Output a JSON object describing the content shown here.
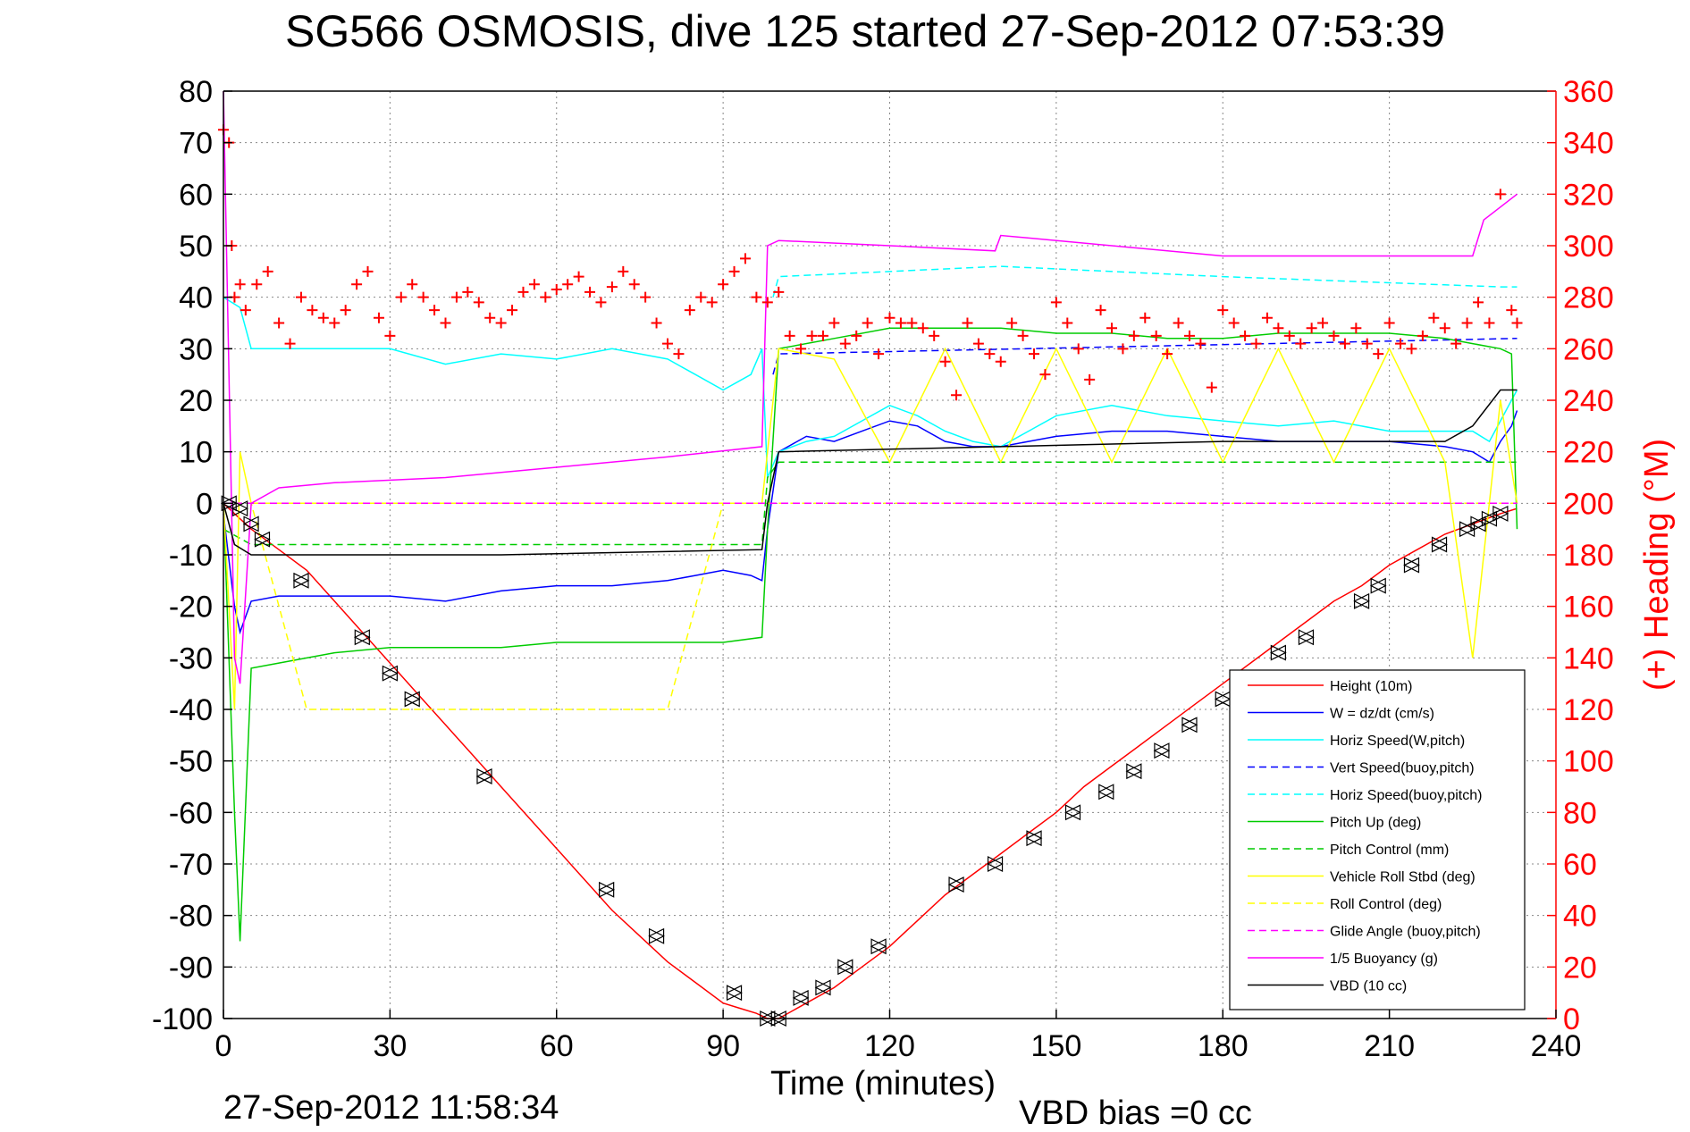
{
  "chart_data": {
    "type": "line",
    "title": "SG566 OSMOSIS, dive 125 started 27-Sep-2012 07:53:39",
    "xlabel": "Time (minutes)",
    "ylabel_right": "(+) Heading (°M)",
    "xlim": [
      0,
      240
    ],
    "ylim": [
      -100,
      80
    ],
    "ylim_right": [
      0,
      360
    ],
    "x_ticks": [
      "0",
      "30",
      "60",
      "90",
      "120",
      "150",
      "180",
      "210",
      "240"
    ],
    "y_ticks": [
      "80",
      "70",
      "60",
      "50",
      "40",
      "30",
      "20",
      "10",
      "0",
      "-10",
      "-20",
      "-30",
      "-40",
      "-50",
      "-60",
      "-70",
      "-80",
      "-90",
      "-100"
    ],
    "y_ticks_right": [
      "360",
      "340",
      "320",
      "300",
      "280",
      "260",
      "240",
      "220",
      "200",
      "180",
      "160",
      "140",
      "120",
      "100",
      "80",
      "60",
      "40",
      "20",
      "0"
    ],
    "grid": true,
    "legend_position": "bottom-right",
    "footer_left": "27-Sep-2012 11:58:34",
    "footer_right": "VBD bias =0 cc",
    "series": [
      {
        "name": "Height (10m)",
        "color": "#ff0000",
        "style": "solid",
        "x": [
          0,
          2,
          5,
          10,
          15,
          20,
          25,
          30,
          35,
          40,
          45,
          50,
          55,
          60,
          65,
          70,
          75,
          80,
          85,
          90,
          93,
          96,
          98,
          100,
          105,
          110,
          115,
          120,
          125,
          130,
          135,
          140,
          145,
          150,
          155,
          160,
          165,
          170,
          175,
          180,
          185,
          190,
          195,
          200,
          205,
          210,
          215,
          220,
          225,
          230,
          233
        ],
        "y": [
          0,
          -2,
          -5,
          -9,
          -13,
          -19,
          -25,
          -31,
          -37,
          -43,
          -49,
          -55,
          -61,
          -67,
          -73,
          -79,
          -84,
          -89,
          -93,
          -97,
          -98,
          -99,
          -100,
          -100,
          -97,
          -94,
          -90,
          -86,
          -81,
          -76,
          -72,
          -68,
          -64,
          -60,
          -55,
          -51,
          -47,
          -43,
          -39,
          -35,
          -31,
          -27,
          -23,
          -19,
          -16,
          -12,
          -9,
          -6,
          -4,
          -2,
          -1
        ]
      },
      {
        "name": "W = dz/dt (cm/s)",
        "color": "#0000ff",
        "style": "solid",
        "x": [
          0,
          2,
          3,
          5,
          10,
          20,
          30,
          40,
          50,
          60,
          70,
          80,
          85,
          90,
          95,
          97,
          98,
          100,
          105,
          110,
          115,
          120,
          125,
          130,
          135,
          140,
          145,
          150,
          160,
          170,
          180,
          190,
          200,
          210,
          220,
          225,
          228,
          230,
          232,
          233
        ],
        "y": [
          -2,
          -20,
          -25,
          -19,
          -18,
          -18,
          -18,
          -19,
          -17,
          -16,
          -16,
          -15,
          -14,
          -13,
          -14,
          -15,
          -5,
          10,
          13,
          12,
          14,
          16,
          15,
          12,
          11,
          11,
          12,
          13,
          14,
          14,
          13,
          12,
          12,
          12,
          11,
          10,
          8,
          12,
          15,
          18
        ]
      },
      {
        "name": "Horiz Speed(W,pitch)",
        "color": "#00ffff",
        "style": "solid",
        "x": [
          0,
          3,
          5,
          10,
          20,
          30,
          40,
          50,
          60,
          70,
          80,
          85,
          90,
          95,
          97,
          98,
          100,
          105,
          110,
          115,
          120,
          125,
          130,
          135,
          140,
          145,
          150,
          160,
          170,
          180,
          190,
          200,
          210,
          220,
          225,
          228,
          230,
          232,
          233
        ],
        "y": [
          40,
          38,
          30,
          30,
          30,
          30,
          27,
          29,
          28,
          30,
          28,
          25,
          22,
          25,
          30,
          5,
          10,
          12,
          13,
          16,
          19,
          17,
          14,
          12,
          11,
          14,
          17,
          19,
          17,
          16,
          15,
          16,
          14,
          14,
          14,
          12,
          16,
          20,
          22
        ]
      },
      {
        "name": "Vert Speed(buoy,pitch)",
        "color": "#0000ff",
        "style": "dashed",
        "x": [
          99,
          100,
          233
        ],
        "y": [
          25,
          29,
          32
        ]
      },
      {
        "name": "Horiz Speed(buoy,pitch)",
        "color": "#00ffff",
        "style": "dashed",
        "x": [
          99,
          100,
          140,
          180,
          230,
          233
        ],
        "y": [
          40,
          44,
          46,
          44,
          42,
          42
        ]
      },
      {
        "name": "Pitch Up (deg)",
        "color": "#00cc00",
        "style": "solid",
        "x": [
          0,
          2,
          3,
          5,
          10,
          20,
          30,
          40,
          50,
          60,
          70,
          80,
          90,
          97,
          98,
          100,
          110,
          120,
          130,
          140,
          150,
          160,
          170,
          180,
          190,
          200,
          210,
          220,
          225,
          230,
          232,
          233
        ],
        "y": [
          0,
          -60,
          -85,
          -32,
          -31,
          -29,
          -28,
          -28,
          -28,
          -27,
          -27,
          -27,
          -27,
          -26,
          -5,
          30,
          32,
          34,
          34,
          34,
          33,
          33,
          32,
          32,
          33,
          33,
          33,
          32,
          31,
          30,
          29,
          -5
        ]
      },
      {
        "name": "Pitch Control (mm)",
        "color": "#00cc00",
        "style": "dashed",
        "x": [
          0,
          5,
          97,
          98,
          100,
          233
        ],
        "y": [
          -5,
          -8,
          -8,
          5,
          8,
          8
        ]
      },
      {
        "name": "Vehicle Roll Stbd (deg)",
        "color": "#ffff00",
        "style": "solid",
        "x": [
          0,
          2,
          3,
          5,
          10,
          20,
          30,
          40,
          50,
          60,
          70,
          80,
          90,
          97,
          98,
          100,
          110,
          120,
          130,
          140,
          150,
          160,
          170,
          180,
          190,
          200,
          210,
          220,
          225,
          230,
          233
        ],
        "y": [
          0,
          -40,
          10,
          0,
          0,
          0,
          0,
          0,
          0,
          0,
          0,
          0,
          0,
          0,
          10,
          30,
          28,
          8,
          30,
          8,
          30,
          8,
          30,
          8,
          30,
          8,
          30,
          8,
          -30,
          20,
          0
        ]
      },
      {
        "name": "Roll Control (deg)",
        "color": "#ffff00",
        "style": "dashed",
        "x": [
          0,
          5,
          15,
          25,
          35,
          47,
          80,
          90,
          100,
          233
        ],
        "y": [
          0,
          0,
          -40,
          -40,
          -40,
          -40,
          -40,
          0,
          0,
          0
        ]
      },
      {
        "name": "Glide Angle (buoy,pitch)",
        "color": "#ff00ff",
        "style": "dashed",
        "x": [
          0,
          5,
          97,
          98,
          100,
          233
        ],
        "y": [
          0,
          0,
          0,
          0,
          0,
          0
        ]
      },
      {
        "name": "1/5 Buoyancy (g)",
        "color": "#ff00ff",
        "style": "solid",
        "x": [
          0,
          2,
          3,
          5,
          10,
          20,
          40,
          60,
          80,
          97,
          98,
          100,
          120,
          139,
          140,
          180,
          225,
          227,
          233
        ],
        "y": [
          80,
          -30,
          -35,
          0,
          3,
          4,
          5,
          7,
          9,
          11,
          50,
          51,
          50,
          49,
          52,
          48,
          48,
          55,
          60
        ]
      },
      {
        "name": "VBD (10 cc)",
        "color": "#000000",
        "style": "solid",
        "x": [
          0,
          2,
          5,
          10,
          50,
          97,
          98,
          100,
          140,
          180,
          220,
          225,
          230,
          233
        ],
        "y": [
          0,
          -8,
          -10,
          -10,
          -10,
          -9,
          0,
          10,
          11,
          12,
          12,
          15,
          22,
          22
        ]
      }
    ],
    "heading_series": {
      "name": "(+) Heading",
      "axis": "right",
      "color": "#ff0000",
      "marker": "+",
      "x": [
        0,
        1,
        1.5,
        2,
        3,
        4,
        6,
        8,
        10,
        12,
        14,
        16,
        18,
        20,
        22,
        24,
        26,
        28,
        30,
        32,
        34,
        36,
        38,
        40,
        42,
        44,
        46,
        48,
        50,
        52,
        54,
        56,
        58,
        60,
        62,
        64,
        66,
        68,
        70,
        72,
        74,
        76,
        78,
        80,
        82,
        84,
        86,
        88,
        90,
        92,
        94,
        96,
        98,
        100,
        102,
        104,
        106,
        108,
        110,
        112,
        114,
        116,
        118,
        120,
        122,
        124,
        126,
        128,
        130,
        132,
        134,
        136,
        138,
        140,
        142,
        144,
        146,
        148,
        150,
        152,
        154,
        156,
        158,
        160,
        162,
        164,
        166,
        168,
        170,
        172,
        174,
        176,
        178,
        180,
        182,
        184,
        186,
        188,
        190,
        192,
        194,
        196,
        198,
        200,
        202,
        204,
        206,
        208,
        210,
        212,
        214,
        216,
        218,
        220,
        222,
        224,
        226,
        228,
        230,
        232,
        233
      ],
      "y": [
        345,
        340,
        300,
        280,
        285,
        275,
        285,
        290,
        270,
        262,
        280,
        275,
        272,
        270,
        275,
        285,
        290,
        272,
        265,
        280,
        285,
        280,
        275,
        270,
        280,
        282,
        278,
        272,
        270,
        275,
        282,
        285,
        280,
        283,
        285,
        288,
        282,
        278,
        284,
        290,
        285,
        280,
        270,
        262,
        258,
        275,
        280,
        278,
        285,
        290,
        295,
        280,
        278,
        282,
        265,
        260,
        265,
        265,
        270,
        262,
        265,
        270,
        258,
        272,
        270,
        270,
        268,
        265,
        255,
        242,
        270,
        262,
        258,
        255,
        270,
        265,
        258,
        250,
        278,
        270,
        260,
        248,
        275,
        268,
        260,
        265,
        272,
        265,
        258,
        270,
        265,
        262,
        245,
        275,
        270,
        265,
        262,
        272,
        268,
        265,
        262,
        268,
        270,
        265,
        262,
        268,
        262,
        258,
        270,
        262,
        260,
        265,
        272,
        268,
        262,
        270,
        278,
        270,
        320,
        275,
        270
      ]
    },
    "dive_markers": {
      "marker": "triangles",
      "x": [
        1,
        3,
        5,
        7,
        14,
        25,
        30,
        34,
        47,
        69,
        78,
        92,
        98,
        100,
        104,
        108,
        112,
        118,
        132,
        139,
        146,
        153,
        159,
        164,
        169,
        174,
        180,
        185,
        190,
        195,
        205,
        208,
        214,
        219,
        224,
        226,
        228,
        230
      ],
      "y": [
        0,
        -1,
        -4,
        -7,
        -15,
        -26,
        -33,
        -38,
        -53,
        -75,
        -84,
        -95,
        -100,
        -100,
        -96,
        -94,
        -90,
        -86,
        -74,
        -70,
        -65,
        -60,
        -56,
        -52,
        -48,
        -43,
        -38,
        -34,
        -29,
        -26,
        -19,
        -16,
        -12,
        -8,
        -5,
        -4,
        -3,
        -2
      ]
    }
  }
}
